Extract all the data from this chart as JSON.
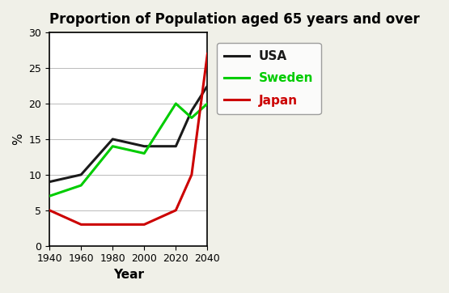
{
  "title": "Proportion of Population aged 65 years and over",
  "xlabel": "Year",
  "ylabel": "%",
  "years": [
    1940,
    1960,
    1980,
    1990,
    2000,
    2020,
    2030,
    2040
  ],
  "usa": [
    9,
    10,
    15,
    14.5,
    14,
    14,
    19,
    22.5
  ],
  "sweden": [
    7,
    8.5,
    14,
    13.5,
    13,
    20,
    18,
    20
  ],
  "japan": [
    5,
    3,
    3,
    3,
    3,
    5,
    10,
    27
  ],
  "usa_color": "#1a1a1a",
  "sweden_color": "#00cc00",
  "japan_color": "#cc0000",
  "bg_outer": "#f0f0e8",
  "bg_inner": "#ffffff",
  "ylim": [
    0,
    30
  ],
  "yticks": [
    0,
    5,
    10,
    15,
    20,
    25,
    30
  ],
  "xticks": [
    1940,
    1960,
    1980,
    2000,
    2020,
    2040
  ],
  "legend_labels": [
    "USA",
    "Sweden",
    "Japan"
  ],
  "legend_colors": [
    "#1a1a1a",
    "#00cc00",
    "#cc0000"
  ],
  "title_fontsize": 12,
  "axis_label_fontsize": 11,
  "tick_fontsize": 9,
  "legend_fontsize": 11
}
